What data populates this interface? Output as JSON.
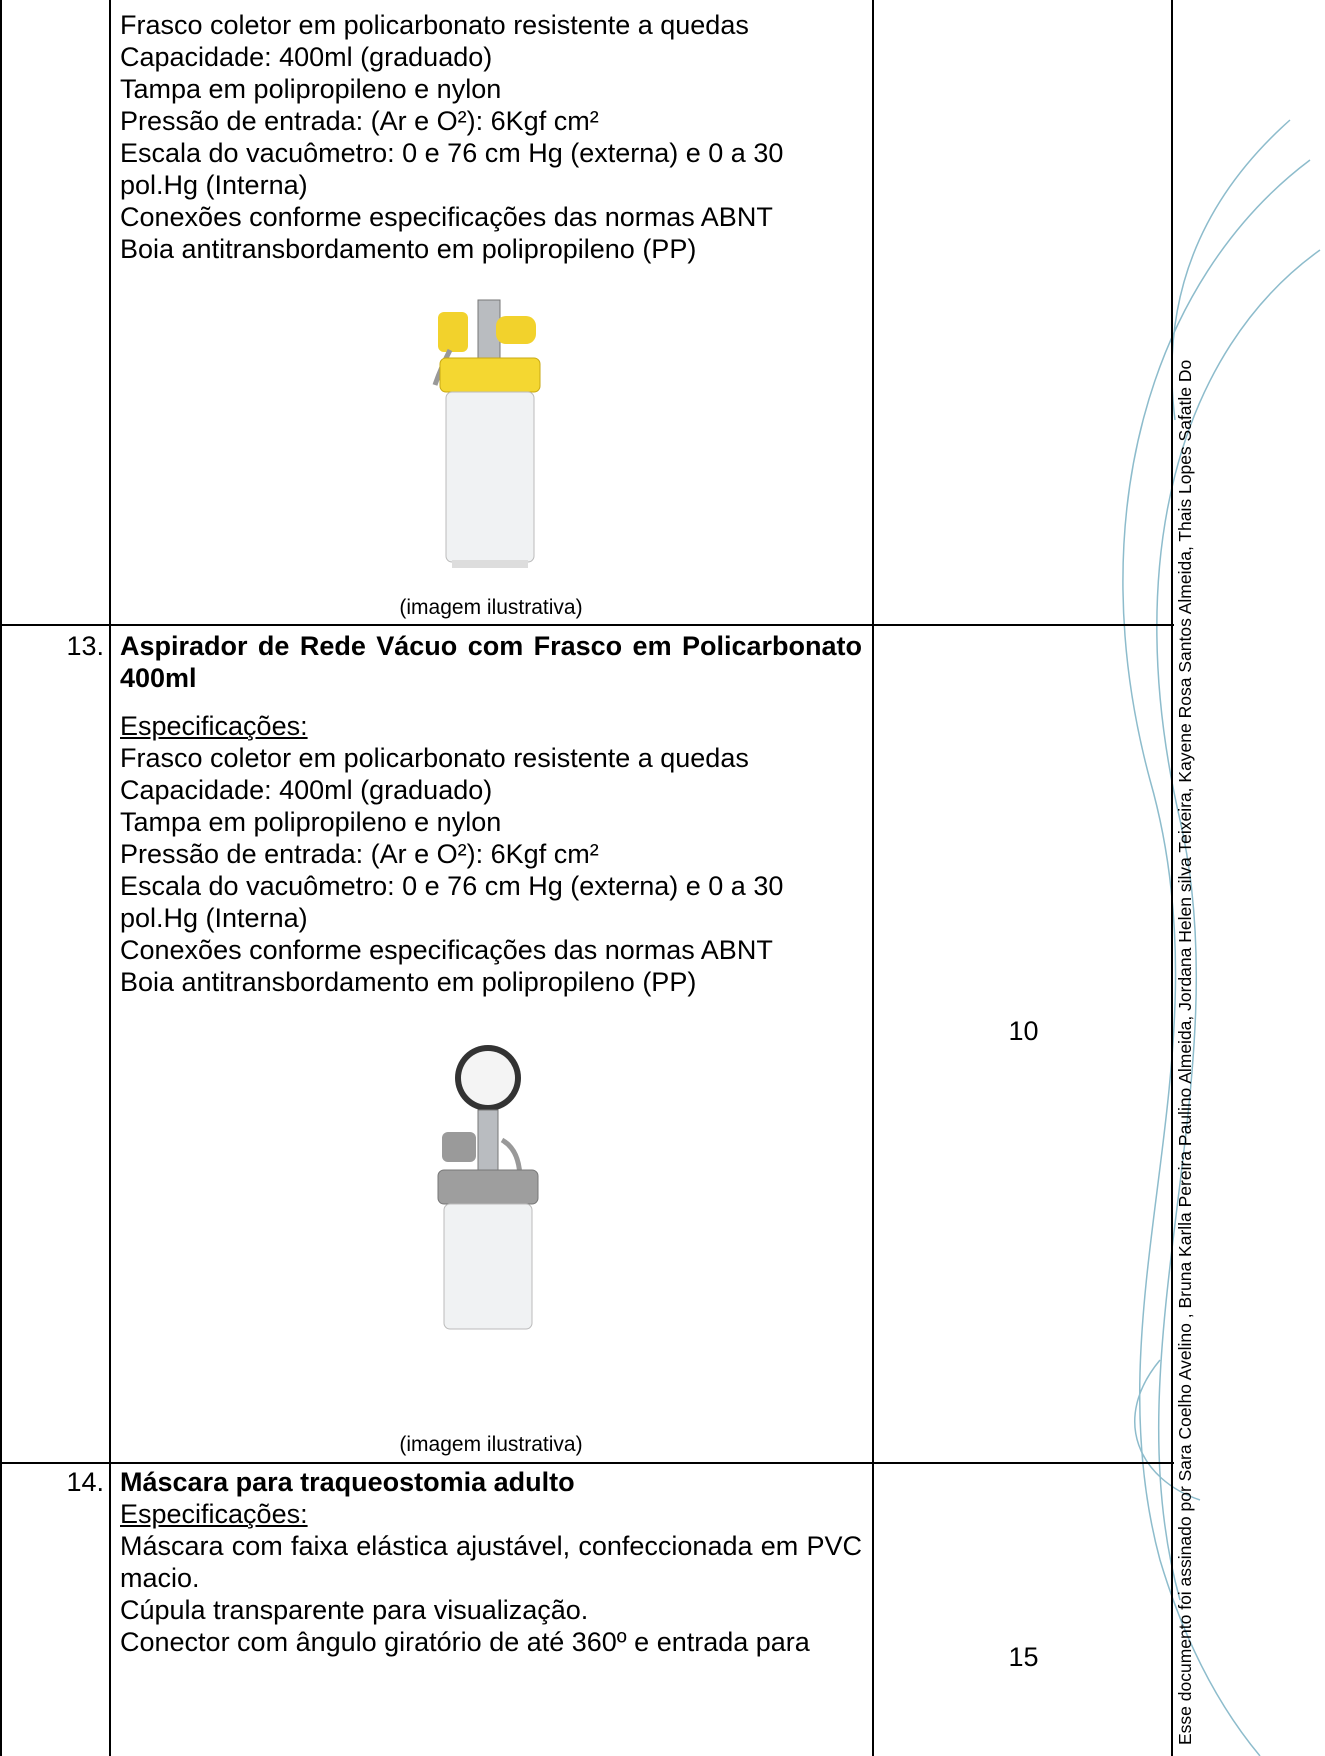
{
  "rows": [
    {
      "lines": [
        "Frasco coletor em policarbonato resistente a quedas",
        "Capacidade: 400ml (graduado)",
        "Tampa em polipropileno e nylon",
        "Pressão de entrada: (Ar e O²): 6Kgf cm²",
        "Escala do vacuômetro: 0 e 76 cm Hg (externa) e 0 a 30",
        "pol.Hg (Interna)",
        "Conexões conforme especificações das normas ABNT",
        "Boia antitransbordamento em polipropileno (PP)"
      ],
      "caption": "(imagem ilustrativa)"
    },
    {
      "number": "13.",
      "title": "Aspirador de Rede Vácuo com Frasco em Policarbonato 400ml",
      "spec_label": "Especificações:",
      "lines": [
        "Frasco coletor em policarbonato resistente a quedas",
        "Capacidade: 400ml (graduado)",
        "Tampa em polipropileno e nylon",
        "Pressão de entrada: (Ar e O²): 6Kgf cm²",
        "Escala do vacuômetro: 0 e 76 cm Hg (externa) e 0 a 30",
        "pol.Hg (Interna)",
        "Conexões conforme especificações das normas ABNT",
        "Boia antitransbordamento em polipropileno (PP)"
      ],
      "caption": "(imagem ilustrativa)",
      "quantity": "10"
    },
    {
      "number": "14.",
      "title": "Máscara para traqueostomia adulto",
      "spec_label": "Especificações:",
      "paragraphs": [
        "Máscara com faixa elástica ajustável, confeccionada em PVC macio.",
        "Cúpula transparente para visualização.",
        "Conector com ângulo giratório de até 360º e entrada para"
      ],
      "quantity": "15"
    }
  ],
  "signature": "Esse documento foi assinado por Sara Coelho Avelino , Bruna Karlla Pereira Paulino Almeida, Jordana Helen silva Teixeira, Kayene Rosa Santos Almeida, Thais Lopes Safatle Do"
}
